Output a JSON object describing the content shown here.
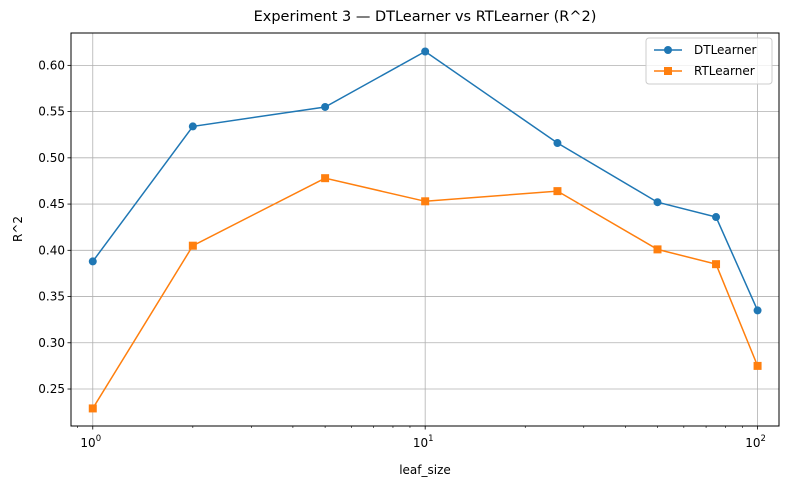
{
  "chart_data": {
    "type": "line",
    "title": "Experiment 3 — DTLearner vs RTLearner (R^2)",
    "xlabel": "leaf_size",
    "ylabel": "R^2",
    "x_scale": "log",
    "x_ticks": [
      {
        "value": 1,
        "base": "10",
        "exp": "0"
      },
      {
        "value": 10,
        "base": "10",
        "exp": "1"
      },
      {
        "value": 100,
        "base": "10",
        "exp": "2"
      }
    ],
    "y_ticks": [
      "0.25",
      "0.30",
      "0.35",
      "0.40",
      "0.45",
      "0.50",
      "0.55",
      "0.60"
    ],
    "xlim": [
      0.86,
      116
    ],
    "ylim": [
      0.21,
      0.635
    ],
    "grid": true,
    "legend_position": "top-right",
    "x": [
      1,
      2,
      5,
      10,
      25,
      50,
      75,
      100
    ],
    "series": [
      {
        "name": "DTLearner",
        "color": "#1f77b4",
        "marker": "circle",
        "values": [
          0.388,
          0.534,
          0.555,
          0.615,
          0.516,
          0.452,
          0.436,
          0.335
        ]
      },
      {
        "name": "RTLearner",
        "color": "#ff7f0e",
        "marker": "square",
        "values": [
          0.229,
          0.405,
          0.478,
          0.453,
          0.464,
          0.401,
          0.385,
          0.275
        ]
      }
    ]
  }
}
